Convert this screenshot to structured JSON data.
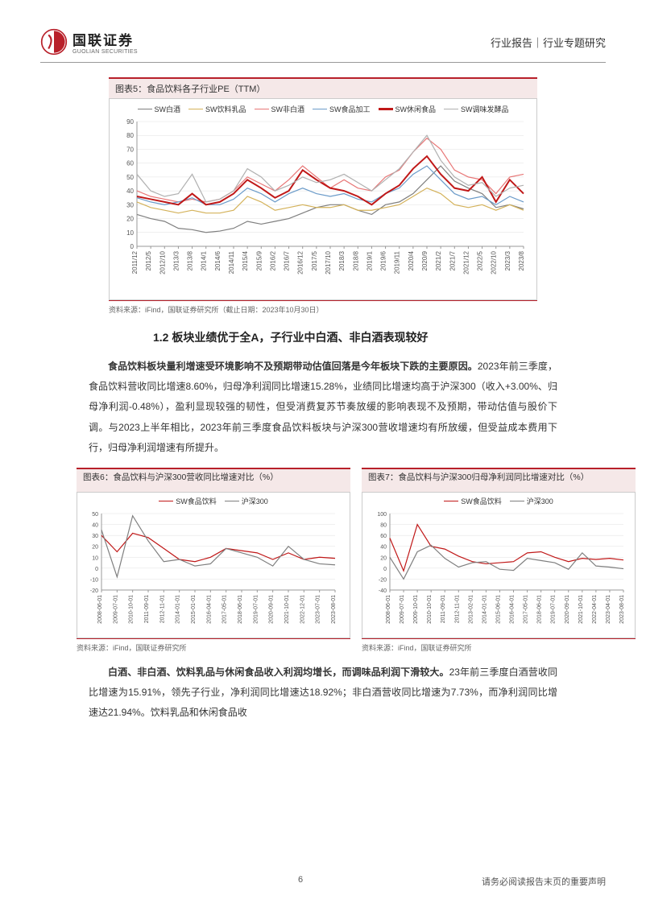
{
  "header": {
    "logo_cn": "国联证券",
    "logo_en": "GUOLIAN SECURITIES",
    "right": "行业报告｜行业专题研究",
    "logo_color": "#b8202a"
  },
  "chart5": {
    "title": "图表5：食品饮料各子行业PE（TTM）",
    "source": "资料来源：iFind，国联证券研究所（截止日期：2023年10月30日）",
    "type": "line",
    "legend": [
      {
        "label": "SW白酒",
        "color": "#7f7f7f"
      },
      {
        "label": "SW饮料乳品",
        "color": "#d4b25a"
      },
      {
        "label": "SW非白酒",
        "color": "#e87777"
      },
      {
        "label": "SW食品加工",
        "color": "#6b9bc9"
      },
      {
        "label": "SW休闲食品",
        "color": "#c01818",
        "bold": true
      },
      {
        "label": "SW调味发酵品",
        "color": "#b0b0b0"
      }
    ],
    "x_labels": [
      "2011/12",
      "2012/5",
      "2012/10",
      "2013/3",
      "2013/8",
      "2014/1",
      "2014/6",
      "2014/11",
      "2015/4",
      "2015/9",
      "2016/2",
      "2016/7",
      "2016/12",
      "2017/5",
      "2017/10",
      "2018/3",
      "2018/8",
      "2019/1",
      "2019/6",
      "2019/11",
      "2020/4",
      "2020/9",
      "2021/2",
      "2021/7",
      "2021/12",
      "2022/5",
      "2022/10",
      "2023/3",
      "2023/8"
    ],
    "ylim": [
      0,
      90
    ],
    "ytick_step": 10,
    "series": {
      "SW白酒": [
        23,
        20,
        18,
        13,
        12,
        10,
        11,
        13,
        18,
        16,
        18,
        20,
        24,
        28,
        30,
        30,
        26,
        23,
        30,
        32,
        38,
        48,
        58,
        47,
        42,
        38,
        28,
        30,
        27
      ],
      "SW饮料乳品": [
        32,
        28,
        26,
        24,
        26,
        24,
        24,
        26,
        36,
        32,
        26,
        28,
        30,
        28,
        28,
        30,
        26,
        26,
        28,
        30,
        36,
        42,
        38,
        30,
        28,
        30,
        26,
        30,
        26
      ],
      "SW非白酒": [
        40,
        36,
        34,
        32,
        34,
        32,
        34,
        40,
        50,
        45,
        40,
        48,
        58,
        50,
        42,
        48,
        42,
        40,
        50,
        55,
        68,
        78,
        70,
        55,
        50,
        48,
        38,
        50,
        52
      ],
      "SW食品加工": [
        35,
        32,
        30,
        32,
        35,
        30,
        30,
        34,
        42,
        38,
        32,
        38,
        42,
        38,
        36,
        38,
        34,
        32,
        38,
        42,
        52,
        58,
        48,
        38,
        34,
        36,
        30,
        36,
        32
      ],
      "SW休闲食品": [
        36,
        34,
        32,
        30,
        38,
        30,
        32,
        38,
        48,
        42,
        35,
        40,
        55,
        48,
        42,
        40,
        36,
        30,
        38,
        44,
        56,
        65,
        52,
        42,
        40,
        50,
        32,
        48,
        38
      ],
      "SW调味发酵品": [
        52,
        40,
        36,
        38,
        52,
        32,
        34,
        40,
        56,
        50,
        40,
        44,
        50,
        46,
        48,
        52,
        46,
        40,
        48,
        56,
        68,
        80,
        62,
        50,
        44,
        46,
        36,
        42,
        44
      ]
    },
    "grid_color": "#e0e0e0",
    "axis_color": "#999",
    "label_fontsize": 8
  },
  "section": {
    "heading": "1.2 板块业绩优于全A，子行业中白酒、非白酒表现较好"
  },
  "para1_bold": "食品饮料板块量利增速受环境影响不及预期带动估值回落是今年板块下跌的主要原因。",
  "para1_rest": "2023年前三季度，食品饮料营收同比增速8.60%，归母净利润同比增速15.28%，业绩同比增速均高于沪深300（收入+3.00%、归母净利润-0.48%），盈利显现较强的韧性，但受消费复苏节奏放缓的影响表现不及预期，带动估值与股价下调。与2023上半年相比，2023年前三季度食品饮料板块与沪深300营收增速均有所放缓，但受益成本费用下行，归母净利润增速有所提升。",
  "chart6": {
    "title": "图表6：食品饮料与沪深300营收同比增速对比（%）",
    "source": "资料来源：iFind，国联证券研究所",
    "type": "line",
    "legend": [
      {
        "label": "SW食品饮料",
        "color": "#c01818"
      },
      {
        "label": "沪深300",
        "color": "#7f7f7f"
      }
    ],
    "x_labels": [
      "2008-06-01",
      "2009-07-01",
      "2010-10-01",
      "2011-09-01",
      "2012-11-01",
      "2014-01-01",
      "2015-01-01",
      "2016-04-01",
      "2017-05-01",
      "2018-06-01",
      "2019-07-01",
      "2020-09-01",
      "2021-10-01",
      "2022-12-01",
      "2023-07-01",
      "2023-08-01"
    ],
    "ylim": [
      -20,
      50
    ],
    "ytick_step": 10,
    "series": {
      "SW食品饮料": [
        30,
        15,
        32,
        28,
        18,
        8,
        6,
        10,
        18,
        16,
        14,
        8,
        14,
        8,
        10,
        9
      ],
      "沪深300": [
        35,
        -8,
        48,
        25,
        6,
        8,
        2,
        4,
        18,
        14,
        10,
        2,
        20,
        8,
        4,
        3
      ]
    },
    "grid_color": "#e0e0e0",
    "axis_color": "#999",
    "label_fontsize": 7
  },
  "chart7": {
    "title": "图表7：食品饮料与沪深300归母净利润同比增速对比（%）",
    "source": "资料来源：iFind，国联证券研究所",
    "type": "line",
    "legend": [
      {
        "label": "SW食品饮料",
        "color": "#c01818"
      },
      {
        "label": "沪深300",
        "color": "#7f7f7f"
      }
    ],
    "x_labels": [
      "2008-06-01",
      "2009-07-01",
      "2009-10-01",
      "2010-10-01",
      "2011-09-01",
      "2012-11-01",
      "2013-02-01",
      "2014-01-01",
      "2015-06-01",
      "2016-04-01",
      "2017-05-01",
      "2018-06-01",
      "2019-07-01",
      "2020-09-01",
      "2021-10-01",
      "2022-04-01",
      "2023-04-01",
      "2023-08-01"
    ],
    "ylim": [
      -40,
      100
    ],
    "ytick_step": 20,
    "series": {
      "SW食品饮料": [
        55,
        -5,
        80,
        40,
        35,
        22,
        12,
        8,
        10,
        12,
        28,
        30,
        20,
        12,
        18,
        16,
        18,
        15
      ],
      "沪深300": [
        20,
        -20,
        30,
        42,
        18,
        2,
        10,
        12,
        -2,
        -4,
        18,
        14,
        10,
        -2,
        28,
        4,
        2,
        -1
      ]
    },
    "grid_color": "#e0e0e0",
    "axis_color": "#999",
    "label_fontsize": 7
  },
  "para2_bold": "白酒、非白酒、饮料乳品与休闲食品收入利润均增长，而调味品利润下滑较大。",
  "para2_rest": "23年前三季度白酒营收同比增速为15.91%，领先子行业，净利润同比增速达18.92%；非白酒营收同比增速为7.73%，而净利润同比增速达21.94%。饮料乳品和休闲食品收",
  "footer": {
    "page": "6",
    "note": "请务必阅读报告末页的重要声明"
  }
}
